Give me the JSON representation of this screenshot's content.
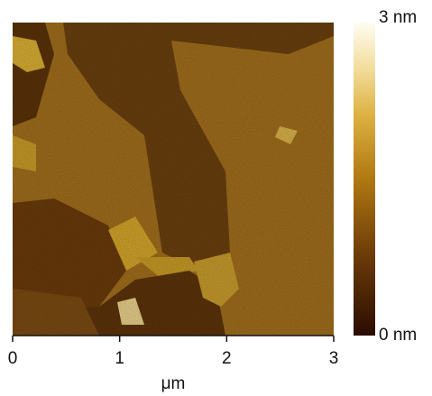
{
  "chart_data": {
    "type": "image",
    "xlabel": "μm",
    "xlim": [
      0,
      3
    ],
    "xticks": [
      0,
      1,
      2,
      3
    ],
    "clim": [
      0,
      3
    ],
    "cticks": [
      {
        "value": 0,
        "label": "0 nm"
      },
      {
        "value": 3,
        "label": "3 nm"
      }
    ]
  }
}
